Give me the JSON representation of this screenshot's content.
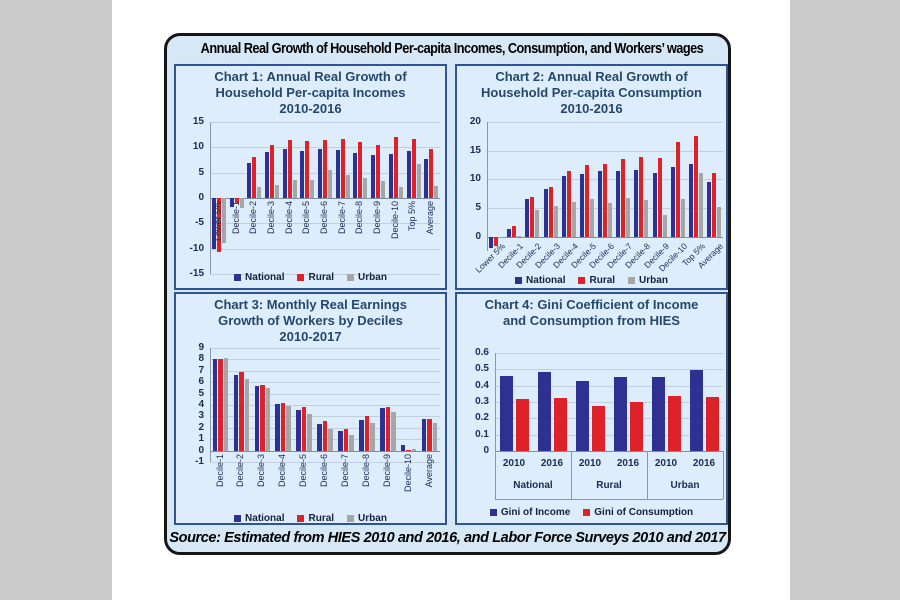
{
  "page": {
    "main_title": "Annual Real Growth of Household Per-capita Incomes, Consumption, and Workers’ wages",
    "source_note": "Source: Estimated from HIES 2010 and 2016, and Labor Force Surveys 2010 and 2017"
  },
  "colors": {
    "page_bg": "#cacaca",
    "photo_bg": "#ffffff",
    "card_bg": "#d6e7f6",
    "card_border": "#161616",
    "panel_bg": "#ddedfb",
    "panel_border": "#2f5496",
    "gridline": "#c2cfde",
    "axis_line": "#7d8da0",
    "tick_text": "#1a2c54",
    "chart_title_text": "#25476b",
    "national": "#2e3192",
    "rural": "#dd2229",
    "urban": "#a6a6a6"
  },
  "chart_data": [
    {
      "id": "chart1",
      "type": "bar",
      "title_lines": [
        "Chart 1: Annual Real Growth of",
        "Household  Per-capita Incomes",
        "2010-2016"
      ],
      "ylim": [
        -15,
        15
      ],
      "yticks": [
        "15",
        "10",
        "5",
        "0",
        "-5",
        "-10",
        "-15"
      ],
      "grid": true,
      "legend_position": "bottom",
      "categories": [
        "Lower 5%",
        "Decile-1",
        "Decile-2",
        "Decile-3",
        "Decile-4",
        "Decile-5",
        "Decile-6",
        "Decile-7",
        "Decile-8",
        "Decile-9",
        "Decile-10",
        "Top 5%",
        "Average"
      ],
      "series": [
        {
          "name": "National",
          "color": "national",
          "values": [
            -10.0,
            -1.8,
            6.9,
            9.0,
            9.6,
            9.3,
            9.7,
            9.5,
            8.8,
            8.5,
            8.7,
            9.2,
            7.8
          ]
        },
        {
          "name": "Rural",
          "color": "rural",
          "values": [
            -10.7,
            -1.0,
            8.2,
            10.5,
            11.5,
            11.3,
            11.5,
            11.7,
            11.1,
            10.4,
            12.1,
            11.6,
            9.7
          ]
        },
        {
          "name": "Urban",
          "color": "urban",
          "values": [
            -8.9,
            -2.0,
            2.1,
            2.6,
            3.6,
            3.6,
            5.6,
            4.5,
            4.0,
            3.4,
            2.2,
            6.8,
            2.4
          ]
        }
      ]
    },
    {
      "id": "chart2",
      "type": "bar",
      "title_lines": [
        "Chart 2: Annual Real Growth of",
        "Household Per-capita Consumption",
        "2010-2016"
      ],
      "ylim": [
        -2.5,
        20
      ],
      "yticks": [
        "20",
        "15",
        "10",
        "5",
        "0"
      ],
      "grid": true,
      "legend_position": "bottom",
      "categories": [
        "Lower 5%",
        "Decile-1",
        "Decile-2",
        "Decile-3",
        "Decile-4",
        "Decile-5",
        "Decile-6",
        "Decile-7",
        "Decile-8",
        "Decile-9",
        "Decile-10",
        "Top 5%",
        "Average"
      ],
      "series": [
        {
          "name": "National",
          "color": "national",
          "values": [
            -2.0,
            1.3,
            6.5,
            8.4,
            10.6,
            10.9,
            11.5,
            11.5,
            11.6,
            11.2,
            12.1,
            12.6,
            9.6
          ]
        },
        {
          "name": "Rural",
          "color": "rural",
          "values": [
            -1.7,
            1.9,
            6.9,
            8.6,
            11.4,
            12.5,
            12.7,
            13.5,
            13.9,
            13.7,
            16.6,
            17.5,
            11.1
          ]
        },
        {
          "name": "Urban",
          "color": "urban",
          "values": [
            -0.3,
            0.1,
            4.6,
            5.3,
            6.1,
            6.6,
            5.8,
            6.8,
            6.4,
            3.8,
            6.5,
            11.1,
            5.2
          ]
        }
      ]
    },
    {
      "id": "chart3",
      "type": "bar",
      "title_lines": [
        "Chart 3:  Monthly Real Earnings",
        "Growth of Workers by Deciles",
        "2010-2017"
      ],
      "ylim": [
        -1,
        9
      ],
      "yticks": [
        "9",
        "8",
        "7",
        "6",
        "5",
        "4",
        "3",
        "2",
        "1",
        "0",
        "-1"
      ],
      "grid": true,
      "legend_position": "bottom",
      "categories": [
        "Decile-1",
        "Decile-2",
        "Decile-3",
        "Decile-4",
        "Decile-5",
        "Decile-6",
        "Decile-7",
        "Decile-8",
        "Decile-9",
        "Decile-10",
        "Average"
      ],
      "series": [
        {
          "name": "National",
          "color": "national",
          "values": [
            8.0,
            6.6,
            5.7,
            4.1,
            3.6,
            2.3,
            1.7,
            2.7,
            3.7,
            0.5,
            2.8
          ]
        },
        {
          "name": "Rural",
          "color": "rural",
          "values": [
            8.0,
            6.9,
            5.8,
            4.2,
            3.8,
            2.6,
            1.9,
            3.0,
            3.8,
            0.05,
            2.8
          ]
        },
        {
          "name": "Urban",
          "color": "urban",
          "values": [
            8.1,
            6.3,
            5.5,
            3.9,
            3.2,
            1.9,
            1.4,
            2.4,
            3.4,
            0.15,
            2.4
          ]
        }
      ]
    },
    {
      "id": "chart4",
      "type": "bar",
      "title_lines": [
        "Chart 4: Gini Coefficient of Income",
        "and Consumption from HIES",
        ""
      ],
      "ylim": [
        0,
        0.6
      ],
      "yticks": [
        "0.6",
        "0.5",
        "0.4",
        "0.3",
        "0.2",
        "0.1",
        "0"
      ],
      "grid": true,
      "legend_position": "bottom",
      "groups": [
        "National",
        "Rural",
        "Urban"
      ],
      "years": [
        "2010",
        "2016",
        "2010",
        "2016",
        "2010",
        "2016"
      ],
      "series": [
        {
          "name": "Gini of Income",
          "color": "national",
          "values": [
            0.458,
            0.482,
            0.43,
            0.455,
            0.452,
            0.498
          ]
        },
        {
          "name": "Gini of Consumption",
          "color": "rural",
          "values": [
            0.32,
            0.325,
            0.275,
            0.3,
            0.335,
            0.33
          ]
        }
      ]
    }
  ]
}
